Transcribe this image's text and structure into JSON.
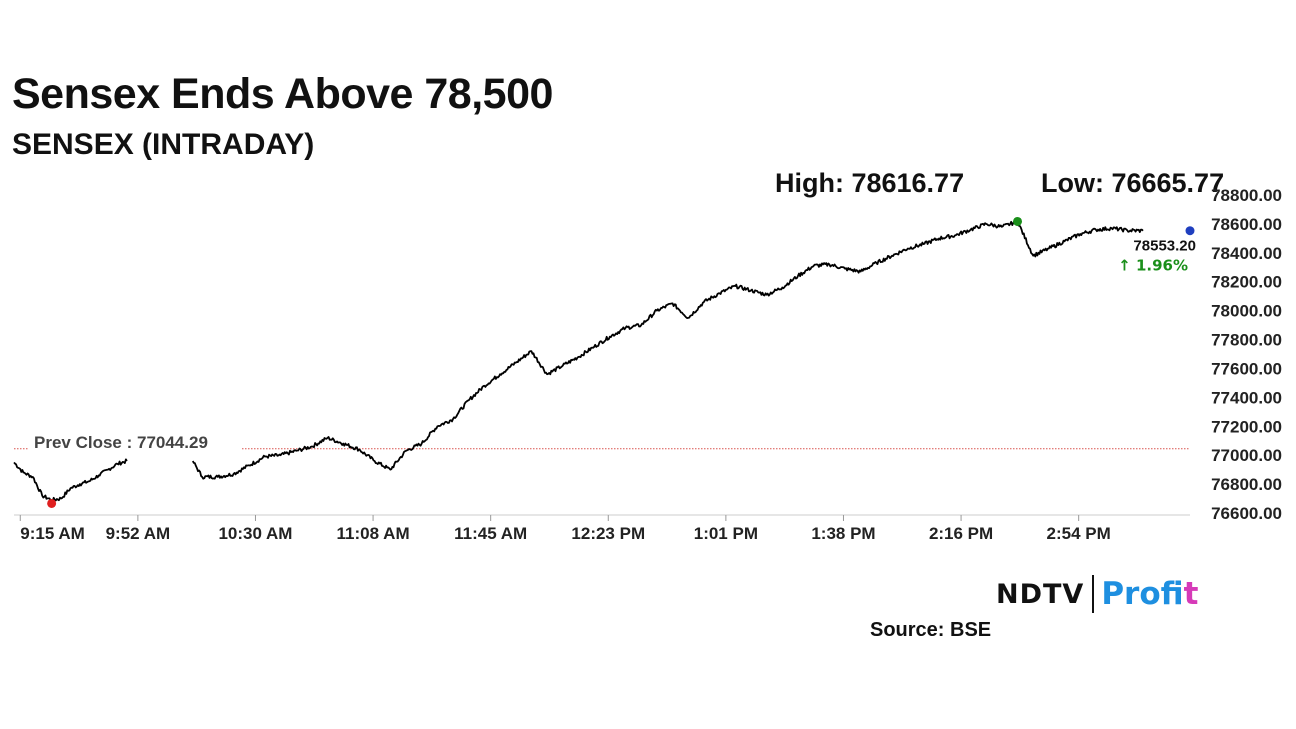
{
  "header": {
    "title": "Sensex Ends Above 78,500",
    "subtitle": "SENSEX (INTRADAY)",
    "high_label": "High: 78616.77",
    "low_label": "Low: 76665.77"
  },
  "colors": {
    "line": "#000000",
    "high_marker": "#1a8f1a",
    "low_marker": "#e02020",
    "last_marker": "#1f3fbf",
    "prev_close_line": "#d9534f",
    "change_text": "#1a8f1a",
    "grid_axis": "#cccccc"
  },
  "chart_data": {
    "type": "line",
    "title": "SENSEX (INTRADAY)",
    "xlabel": "",
    "ylabel": "",
    "x_ticks": [
      "9:15 AM",
      "9:52 AM",
      "10:30 AM",
      "11:08 AM",
      "11:45 AM",
      "12:23 PM",
      "1:01 PM",
      "1:38 PM",
      "2:16 PM",
      "2:54 PM"
    ],
    "y_ticks": [
      "78800.00",
      "78600.00",
      "78400.00",
      "78200.00",
      "78000.00",
      "77800.00",
      "77600.00",
      "77400.00",
      "77200.00",
      "77000.00",
      "76800.00",
      "76600.00"
    ],
    "ylim": [
      76600,
      78800
    ],
    "y_axis_side": "right",
    "prev_close": 77044.29,
    "prev_close_label": "Prev Close : 77044.29",
    "high": 78616.77,
    "low": 76665.77,
    "last_value_label": "78553.20",
    "change_label": "↑ 1.96%",
    "gap_minutes": [
      37,
      57
    ],
    "series": [
      {
        "name": "SENSEX",
        "minutes": [
          0,
          3,
          6,
          9,
          12,
          15,
          18,
          21,
          24,
          27,
          30,
          33,
          36,
          57,
          60,
          65,
          70,
          75,
          80,
          85,
          90,
          95,
          100,
          105,
          110,
          115,
          120,
          125,
          130,
          135,
          140,
          145,
          150,
          155,
          160,
          165,
          170,
          175,
          180,
          185,
          190,
          195,
          200,
          205,
          210,
          215,
          220,
          225,
          230,
          235,
          240,
          245,
          250,
          255,
          260,
          265,
          270,
          275,
          280,
          285,
          290,
          295,
          300,
          305,
          310,
          315,
          320,
          325,
          330,
          335,
          340,
          345,
          350,
          355,
          360
        ],
        "values": [
          76950,
          76880,
          76850,
          76720,
          76690,
          76700,
          76770,
          76800,
          76820,
          76860,
          76900,
          76940,
          76960,
          76960,
          76850,
          76850,
          76870,
          76930,
          76990,
          77000,
          77030,
          77060,
          77120,
          77080,
          77040,
          76960,
          76900,
          77030,
          77080,
          77200,
          77250,
          77380,
          77480,
          77560,
          77640,
          77720,
          77560,
          77620,
          77680,
          77750,
          77820,
          77880,
          77900,
          78000,
          78050,
          77950,
          78060,
          78120,
          78170,
          78140,
          78110,
          78160,
          78240,
          78310,
          78320,
          78290,
          78270,
          78330,
          78380,
          78430,
          78460,
          78500,
          78520,
          78560,
          78600,
          78580,
          78617,
          78380,
          78430,
          78480,
          78530,
          78560,
          78570,
          78555,
          78553
        ]
      }
    ]
  },
  "branding": {
    "logo_left": "NDTV",
    "logo_right_main": "Profi",
    "logo_right_end": "t",
    "source": "Source: BSE"
  }
}
